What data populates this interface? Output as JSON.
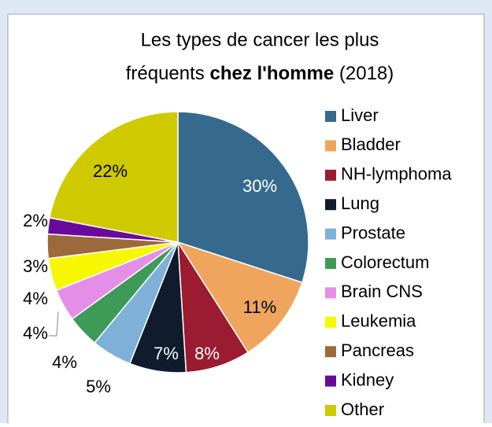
{
  "chart_data": {
    "type": "pie",
    "title": {
      "line1": "Les types de cancer les plus",
      "line2_pre": "fréquents",
      "line2_bold": "chez l'homme",
      "line2_post": "(2018)"
    },
    "categories": [
      "Liver",
      "Bladder",
      "NH-lymphoma",
      "Lung",
      "Prostate",
      "Colorectum",
      "Brain CNS",
      "Leukemia",
      "Pancreas",
      "Kidney",
      "Other"
    ],
    "values": [
      30,
      11,
      8,
      7,
      5,
      4,
      4,
      4,
      3,
      2,
      22
    ],
    "value_labels": [
      "30%",
      "11%",
      "8%",
      "7%",
      "5%",
      "4%",
      "4%",
      "4%",
      "3%",
      "2%",
      "22%"
    ],
    "colors": [
      "#356a8e",
      "#efa55e",
      "#9b1b30",
      "#0e1c2e",
      "#7fb0d8",
      "#3e9a57",
      "#e58ee8",
      "#f7f700",
      "#9c6a3a",
      "#6a0a9a",
      "#cfc900"
    ],
    "legend": "right"
  }
}
